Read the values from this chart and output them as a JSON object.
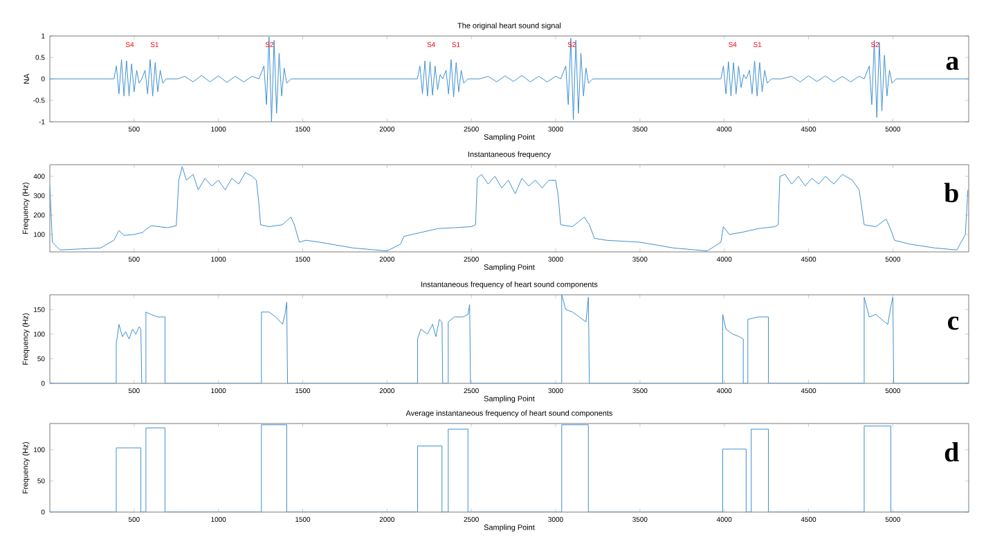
{
  "chart_data": [
    {
      "type": "line",
      "title": "The original heart sound signal",
      "xlabel": "Sampling Point",
      "ylabel": "NA",
      "color": "#3d8fd1",
      "xlim": [
        0,
        5450
      ],
      "ylim": [
        -1,
        1
      ],
      "xticks": [
        500,
        1000,
        1500,
        2000,
        2500,
        3000,
        3500,
        4000,
        4500,
        5000
      ],
      "yticks": [
        -1,
        -0.5,
        0,
        0.5,
        1
      ],
      "x": [
        0,
        380,
        395,
        410,
        425,
        440,
        455,
        470,
        485,
        500,
        515,
        530,
        545,
        565,
        580,
        595,
        610,
        625,
        640,
        655,
        670,
        690,
        760,
        800,
        850,
        900,
        950,
        1000,
        1050,
        1100,
        1150,
        1200,
        1240,
        1270,
        1285,
        1300,
        1315,
        1330,
        1345,
        1360,
        1375,
        1390,
        1405,
        1430,
        2180,
        2195,
        2210,
        2225,
        2240,
        2255,
        2270,
        2285,
        2300,
        2315,
        2330,
        2350,
        2365,
        2380,
        2395,
        2410,
        2425,
        2440,
        2455,
        2480,
        2550,
        2600,
        2650,
        2700,
        2750,
        2800,
        2850,
        2900,
        2950,
        3000,
        3030,
        3060,
        3075,
        3090,
        3105,
        3120,
        3135,
        3150,
        3165,
        3180,
        3195,
        3220,
        3980,
        3995,
        4010,
        4025,
        4040,
        4055,
        4070,
        4085,
        4100,
        4115,
        4130,
        4150,
        4165,
        4180,
        4195,
        4210,
        4225,
        4240,
        4255,
        4280,
        4340,
        4400,
        4450,
        4500,
        4550,
        4600,
        4650,
        4700,
        4750,
        4800,
        4830,
        4860,
        4875,
        4890,
        4905,
        4920,
        4935,
        4950,
        4965,
        4980,
        4995,
        5020,
        5450
      ],
      "values": [
        0,
        0,
        0.3,
        -0.35,
        0.45,
        -0.4,
        0.42,
        -0.4,
        0.35,
        -0.3,
        0.2,
        -0.1,
        0,
        0.2,
        -0.35,
        0.45,
        -0.4,
        0.38,
        -0.3,
        0.2,
        -0.1,
        0,
        0,
        0.06,
        -0.07,
        0.08,
        -0.07,
        0.07,
        -0.08,
        0.06,
        -0.07,
        0.06,
        0,
        0.3,
        -0.6,
        0.98,
        -1,
        0.9,
        -0.8,
        0.6,
        -0.4,
        0.25,
        -0.1,
        0,
        0,
        0.3,
        -0.35,
        0.42,
        -0.4,
        0.4,
        -0.38,
        0.3,
        -0.25,
        0.1,
        0,
        0.2,
        -0.35,
        0.45,
        -0.42,
        0.38,
        -0.3,
        0.2,
        -0.1,
        0,
        0,
        0.06,
        -0.07,
        0.07,
        -0.06,
        0.08,
        -0.07,
        0.06,
        -0.07,
        0.06,
        0,
        0.3,
        -0.6,
        0.95,
        -0.95,
        0.9,
        -0.8,
        0.6,
        -0.4,
        0.25,
        -0.1,
        0,
        0,
        0.3,
        -0.35,
        0.4,
        -0.4,
        0.38,
        -0.35,
        0.3,
        -0.2,
        0.1,
        0,
        0.2,
        -0.35,
        0.42,
        -0.4,
        0.38,
        -0.3,
        0.2,
        -0.1,
        0,
        0,
        0.06,
        -0.07,
        0.07,
        -0.06,
        0.07,
        -0.07,
        0.06,
        -0.07,
        0.06,
        0,
        0.3,
        -0.6,
        0.9,
        -0.9,
        0.85,
        -0.75,
        0.55,
        -0.4,
        0.2,
        -0.1,
        0,
        0
      ],
      "annotations": [
        "a",
        "S4",
        "S1",
        "S2",
        "S4",
        "S1",
        "S2",
        "S4",
        "S1",
        "S2"
      ]
    },
    {
      "type": "line",
      "title": "Instantaneous frequency",
      "xlabel": "Sampling Point",
      "ylabel": "Frequency (Hz)",
      "color": "#3d8fd1",
      "xlim": [
        0,
        5450
      ],
      "ylim": [
        10,
        460
      ],
      "xticks": [
        500,
        1000,
        1500,
        2000,
        2500,
        3000,
        3500,
        4000,
        4500,
        5000
      ],
      "yticks": [
        100,
        200,
        300,
        400
      ],
      "x": [
        0,
        15,
        60,
        300,
        380,
        410,
        440,
        500,
        550,
        570,
        600,
        700,
        750,
        765,
        785,
        810,
        850,
        880,
        920,
        960,
        1000,
        1040,
        1080,
        1120,
        1160,
        1200,
        1225,
        1240,
        1250,
        1300,
        1380,
        1430,
        1450,
        1480,
        1520,
        1600,
        1800,
        2000,
        2080,
        2100,
        2150,
        2200,
        2300,
        2400,
        2500,
        2525,
        2535,
        2560,
        2600,
        2640,
        2680,
        2720,
        2760,
        2800,
        2840,
        2880,
        2920,
        2960,
        3000,
        3015,
        3030,
        3100,
        3170,
        3200,
        3230,
        3300,
        3500,
        3700,
        3900,
        3980,
        3995,
        4030,
        4100,
        4200,
        4300,
        4320,
        4330,
        4360,
        4400,
        4440,
        4480,
        4520,
        4560,
        4600,
        4650,
        4700,
        4760,
        4800,
        4830,
        4900,
        4960,
        4990,
        5010,
        5100,
        5250,
        5380,
        5430,
        5445
      ],
      "values": [
        350,
        60,
        20,
        30,
        70,
        120,
        95,
        100,
        110,
        125,
        145,
        135,
        145,
        380,
        450,
        380,
        410,
        330,
        390,
        350,
        380,
        330,
        390,
        360,
        420,
        400,
        380,
        260,
        150,
        140,
        150,
        190,
        150,
        60,
        70,
        60,
        30,
        15,
        50,
        90,
        100,
        110,
        130,
        135,
        140,
        150,
        390,
        410,
        360,
        400,
        340,
        380,
        310,
        390,
        350,
        380,
        340,
        380,
        380,
        300,
        150,
        140,
        190,
        150,
        80,
        70,
        60,
        30,
        15,
        60,
        140,
        100,
        110,
        130,
        140,
        150,
        400,
        410,
        360,
        400,
        350,
        390,
        360,
        400,
        360,
        410,
        380,
        330,
        150,
        140,
        180,
        120,
        70,
        50,
        30,
        20,
        100,
        330
      ],
      "annotations": [
        "b"
      ]
    },
    {
      "type": "line",
      "title": "Instantaneous frequency of heart sound components",
      "xlabel": "Sampling Point",
      "ylabel": "Frequency (Hz)",
      "color": "#3d8fd1",
      "xlim": [
        0,
        5450
      ],
      "ylim": [
        0,
        180
      ],
      "xticks": [
        500,
        1000,
        1500,
        2000,
        2500,
        3000,
        3500,
        4000,
        4500,
        5000
      ],
      "yticks": [
        0,
        50,
        100,
        150
      ],
      "x": [
        0,
        394,
        394,
        410,
        430,
        450,
        470,
        490,
        510,
        530,
        540,
        545,
        570,
        570,
        600,
        640,
        683,
        683,
        1255,
        1255,
        1300,
        1340,
        1380,
        1395,
        1405,
        1410,
        2181,
        2181,
        2200,
        2240,
        2270,
        2290,
        2310,
        2326,
        2330,
        2363,
        2363,
        2400,
        2450,
        2480,
        2490,
        2495,
        3036,
        3036,
        3060,
        3100,
        3140,
        3180,
        3194,
        3200,
        3991,
        3991,
        4010,
        4050,
        4090,
        4113,
        4113,
        4140,
        4140,
        4200,
        4262,
        4262,
        4830,
        4830,
        4860,
        4900,
        4950,
        4970,
        4990,
        5000,
        5005,
        5450
      ],
      "values": [
        0,
        0,
        80,
        120,
        95,
        105,
        90,
        110,
        100,
        115,
        110,
        0,
        0,
        145,
        140,
        135,
        135,
        0,
        0,
        145,
        145,
        135,
        120,
        140,
        165,
        0,
        0,
        90,
        110,
        100,
        120,
        95,
        130,
        125,
        0,
        0,
        125,
        135,
        135,
        140,
        160,
        0,
        0,
        180,
        150,
        145,
        135,
        125,
        175,
        0,
        0,
        140,
        110,
        100,
        95,
        90,
        0,
        0,
        130,
        135,
        135,
        0,
        0,
        175,
        135,
        140,
        125,
        120,
        160,
        175,
        0,
        0
      ],
      "annotations": [
        "c"
      ]
    },
    {
      "type": "line",
      "title": "Average instantaneous frequency of heart sound components",
      "xlabel": "Sampling Point",
      "ylabel": "Frequency (Hz)",
      "color": "#3d8fd1",
      "xlim": [
        0,
        5450
      ],
      "ylim": [
        0,
        142
      ],
      "xticks": [
        500,
        1000,
        1500,
        2000,
        2500,
        3000,
        3500,
        4000,
        4500,
        5000
      ],
      "yticks": [
        0,
        50,
        100
      ],
      "x": [
        0,
        394,
        394,
        540,
        540,
        570,
        570,
        683,
        683,
        1255,
        1255,
        1405,
        1405,
        2181,
        2181,
        2326,
        2326,
        2363,
        2363,
        2480,
        2480,
        3036,
        3036,
        3194,
        3194,
        3991,
        3991,
        4130,
        4130,
        4160,
        4160,
        4262,
        4262,
        4830,
        4830,
        4988,
        4988,
        5450
      ],
      "values": [
        0,
        0,
        103,
        103,
        0,
        0,
        135,
        135,
        0,
        0,
        140,
        140,
        0,
        0,
        106,
        106,
        0,
        0,
        133,
        133,
        0,
        0,
        140,
        140,
        0,
        0,
        101,
        101,
        0,
        0,
        133,
        133,
        0,
        0,
        138,
        138,
        0,
        0
      ],
      "annotations": [
        "d"
      ]
    }
  ]
}
